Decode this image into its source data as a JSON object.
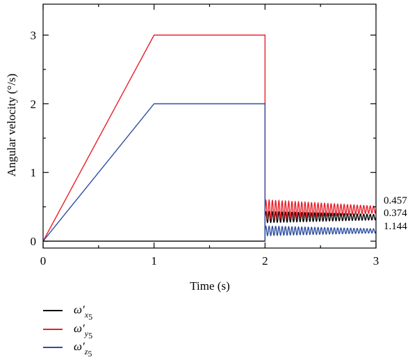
{
  "chart_data": {
    "type": "line",
    "xlabel": "Time (s)",
    "ylabel": "Angular velocity (°/s)",
    "xlim": [
      0,
      3
    ],
    "ylim": [
      -0.1,
      3.45
    ],
    "xticks": [
      "0",
      "1",
      "2",
      "3"
    ],
    "yticks": [
      "0",
      "1",
      "2",
      "3"
    ],
    "grid": false,
    "legend_position": "bottom-left",
    "end_labels": [
      "0.457",
      "0.374",
      "1.144"
    ],
    "series": [
      {
        "legend": {
          "base": "ω′",
          "sub1": "x",
          "sub2": "5"
        },
        "color": "#000000",
        "segments": [
          {
            "x": [
              0,
              1
            ],
            "y": [
              0,
              0
            ]
          },
          {
            "x": [
              1,
              2
            ],
            "y": [
              0,
              0
            ]
          },
          {
            "x": [
              2,
              2
            ],
            "y": [
              0,
              0.55
            ]
          },
          {
            "x": [
              2,
              3
            ],
            "y_center": 0.35,
            "amp_start": 0.08,
            "amp_end": 0.04,
            "cycles": 34
          }
        ]
      },
      {
        "legend": {
          "base": "ω′",
          "sub1": "y",
          "sub2": "5"
        },
        "color": "#e8202a",
        "segments": [
          {
            "x": [
              0,
              1
            ],
            "y": [
              0,
              3
            ]
          },
          {
            "x": [
              1,
              2
            ],
            "y": [
              3,
              3
            ]
          },
          {
            "x": [
              2,
              2
            ],
            "y": [
              3,
              0.6
            ]
          },
          {
            "x": [
              2,
              3
            ],
            "y_center": 0.46,
            "amp_start": 0.14,
            "amp_end": 0.05,
            "cycles": 34
          }
        ]
      },
      {
        "legend": {
          "base": "ω′",
          "sub1": "z",
          "sub2": "5"
        },
        "color": "#2e4ea0",
        "segments": [
          {
            "x": [
              0,
              1
            ],
            "y": [
              0,
              2
            ]
          },
          {
            "x": [
              1,
              2
            ],
            "y": [
              2,
              2
            ]
          },
          {
            "x": [
              2,
              2
            ],
            "y": [
              2,
              0
            ]
          },
          {
            "x": [
              2,
              3
            ],
            "y_center": 0.15,
            "amp_start": 0.07,
            "amp_end": 0.03,
            "cycles": 34
          }
        ]
      }
    ]
  }
}
